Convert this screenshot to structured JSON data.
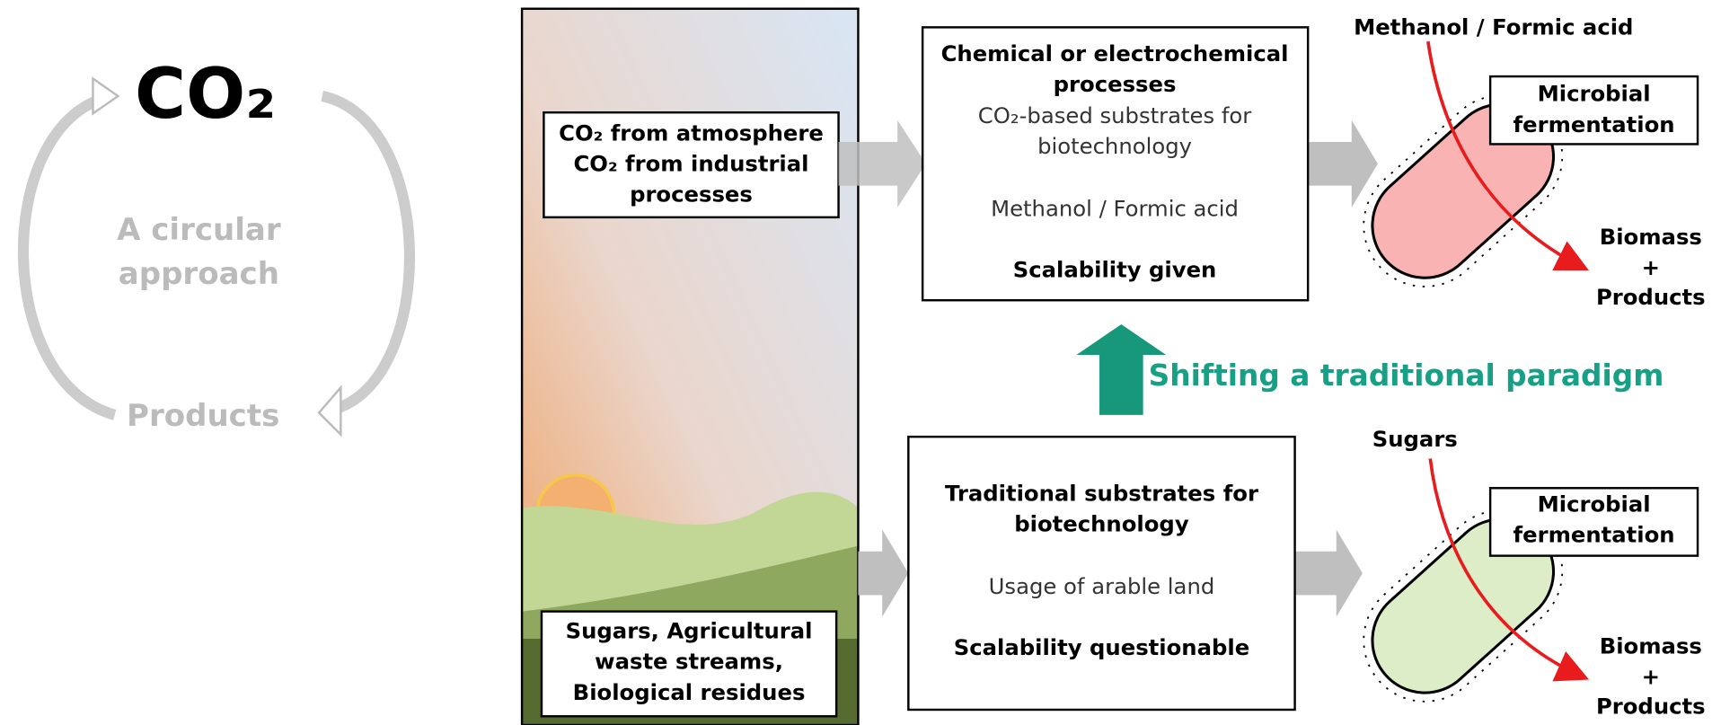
{
  "cycle": {
    "center": "CO₂",
    "middle": [
      "A circular",
      "approach"
    ],
    "bottom": "Products"
  },
  "sources": {
    "top": [
      "CO₂ from atmosphere",
      "CO₂ from industrial",
      "processes"
    ],
    "bottom": [
      "Sugars, Agricultural",
      "waste streams,",
      "Biological residues"
    ]
  },
  "new_process": {
    "title": [
      "Chemical or electrochemical",
      "processes"
    ],
    "subtitle": [
      "CO₂-based substrates for",
      "biotechnology"
    ],
    "substrate": "Methanol / Formic acid",
    "scalability": "Scalability given"
  },
  "shift": "Shifting a traditional paradigm",
  "traditional_process": {
    "title": [
      "Traditional substrates for",
      "biotechnology"
    ],
    "note": "Usage of arable land",
    "scalability": "Scalability questionable"
  },
  "fermentation_top": {
    "input": "Methanol / Formic acid",
    "label": [
      "Microbial",
      "fermentation"
    ],
    "output": [
      "Biomass",
      "+",
      "Products"
    ]
  },
  "fermentation_bottom": {
    "input": "Sugars",
    "label": [
      "Microbial",
      "fermentation"
    ],
    "output": [
      "Biomass",
      "+",
      "Products"
    ]
  }
}
